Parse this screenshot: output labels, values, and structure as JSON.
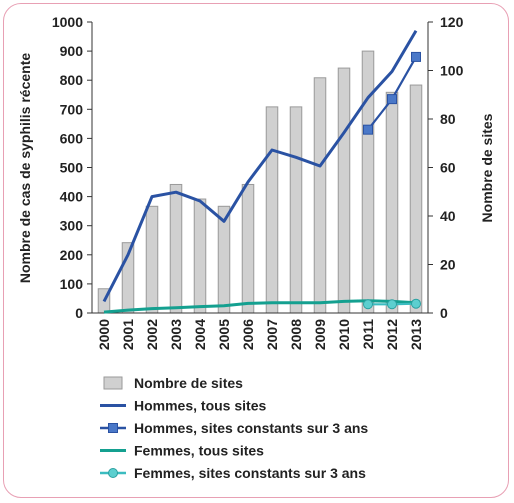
{
  "chart_data": {
    "type": "bar",
    "categories": [
      "2000",
      "2001",
      "2002",
      "2003",
      "2004",
      "2005",
      "2006",
      "2007",
      "2008",
      "2009",
      "2010",
      "2011",
      "2012",
      "2013"
    ],
    "ylabel_left": "Nombre de cas de syphilis récente",
    "ylabel_right": "Nombre de sites",
    "ylim_left": [
      0,
      1000
    ],
    "ylim_right": [
      0,
      120
    ],
    "yticks_left": [
      0,
      100,
      200,
      300,
      400,
      500,
      600,
      700,
      800,
      900,
      1000
    ],
    "yticks_right": [
      0,
      20,
      40,
      60,
      80,
      100,
      120
    ],
    "grid": false,
    "legend_position": "bottom",
    "series": [
      {
        "name": "Nombre de sites",
        "kind": "bar",
        "axis": "right",
        "color": "#c8c8c8",
        "values": [
          10,
          29,
          44,
          53,
          47,
          44,
          53,
          85,
          85,
          97,
          101,
          108,
          91,
          94
        ]
      },
      {
        "name": "Hommes, tous sites",
        "kind": "line",
        "axis": "left",
        "color": "#2a52a3",
        "marker": "none",
        "values": [
          40,
          200,
          400,
          415,
          385,
          315,
          450,
          560,
          535,
          505,
          620,
          740,
          830,
          970
        ]
      },
      {
        "name": "Hommes, sites constants sur 3 ans",
        "kind": "line",
        "axis": "left",
        "color": "#2a52a3",
        "marker": "square",
        "values": [
          null,
          null,
          null,
          null,
          null,
          null,
          null,
          null,
          null,
          null,
          null,
          630,
          735,
          880
        ]
      },
      {
        "name": "Femmes, tous sites",
        "kind": "line",
        "axis": "left",
        "color": "#14a090",
        "marker": "none",
        "values": [
          3,
          10,
          15,
          18,
          22,
          25,
          33,
          35,
          35,
          35,
          40,
          42,
          40,
          35
        ]
      },
      {
        "name": "Femmes, sites constants sur 3 ans",
        "kind": "line",
        "axis": "left",
        "color": "#3bbcc0",
        "marker": "circle",
        "values": [
          null,
          null,
          null,
          null,
          null,
          null,
          null,
          null,
          null,
          null,
          null,
          30,
          30,
          32
        ]
      }
    ]
  }
}
